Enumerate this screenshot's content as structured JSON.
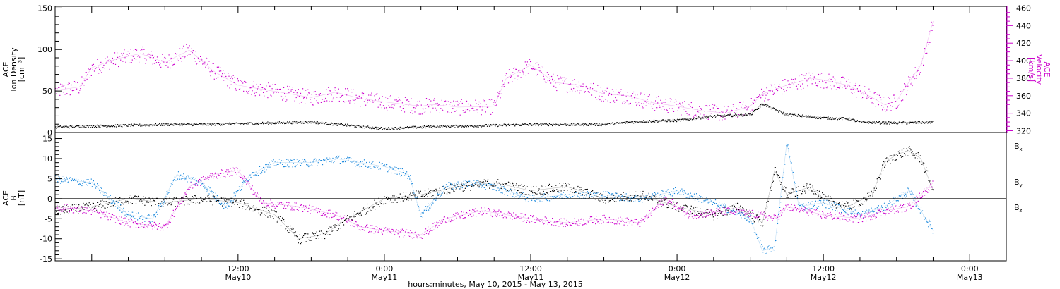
{
  "chart_data": {
    "type": "scatter",
    "xlabel": "hours:minutes, May 10, 2015 - May 13, 2015",
    "x_range_hours": [
      -3,
      75
    ],
    "x_ticks": [
      {
        "hour": 12,
        "time": "12:00",
        "date": "May10"
      },
      {
        "hour": 24,
        "time": "0:00",
        "date": "May11"
      },
      {
        "hour": 36,
        "time": "12:00",
        "date": "May11"
      },
      {
        "hour": 48,
        "time": "0:00",
        "date": "May12"
      },
      {
        "hour": 60,
        "time": "12:00",
        "date": "May12"
      },
      {
        "hour": 72,
        "time": "0:00",
        "date": "May13"
      }
    ],
    "panels": [
      {
        "name": "ion-density-velocity",
        "ylabel": [
          "ACE",
          "Ion Density",
          "[cm⁻³]"
        ],
        "ylim": [
          0,
          152
        ],
        "y_ticks": [
          0,
          50,
          100,
          150
        ],
        "ylabel_right": [
          "ACE",
          "Velocity",
          "[km/s]"
        ],
        "ylim_right": [
          318,
          462
        ],
        "y_ticks_right": [
          320,
          340,
          360,
          380,
          400,
          420,
          440,
          460
        ],
        "series": [
          {
            "axis": "left",
            "color": "#000000",
            "points": [
              [
                -3,
                7
              ],
              [
                0,
                8
              ],
              [
                3,
                9
              ],
              [
                6,
                10
              ],
              [
                9,
                10
              ],
              [
                12,
                11
              ],
              [
                15,
                12
              ],
              [
                18,
                13
              ],
              [
                21,
                9
              ],
              [
                24,
                5
              ],
              [
                27,
                7
              ],
              [
                30,
                8
              ],
              [
                33,
                9
              ],
              [
                36,
                10
              ],
              [
                39,
                10
              ],
              [
                42,
                10
              ],
              [
                45,
                14
              ],
              [
                48,
                15
              ],
              [
                51,
                20
              ],
              [
                54,
                22
              ],
              [
                55,
                35
              ],
              [
                56,
                28
              ],
              [
                57,
                22
              ],
              [
                60,
                18
              ],
              [
                62,
                17
              ],
              [
                63,
                13
              ],
              [
                65,
                12
              ],
              [
                67,
                12
              ],
              [
                69,
                13
              ]
            ]
          },
          {
            "axis": "right",
            "color": "#cc00cc",
            "points": [
              [
                -3,
                366
              ],
              [
                -1,
                370
              ],
              [
                0,
                392
              ],
              [
                2,
                402
              ],
              [
                4,
                408
              ],
              [
                6,
                398
              ],
              [
                8,
                412
              ],
              [
                9,
                400
              ],
              [
                10,
                388
              ],
              [
                12,
                372
              ],
              [
                15,
                365
              ],
              [
                18,
                358
              ],
              [
                20,
                364
              ],
              [
                22,
                357
              ],
              [
                24,
                353
              ],
              [
                27,
                348
              ],
              [
                28,
                350
              ],
              [
                30,
                347
              ],
              [
                33,
                348
              ],
              [
                34,
                380
              ],
              [
                36,
                395
              ],
              [
                38,
                375
              ],
              [
                40,
                372
              ],
              [
                42,
                362
              ],
              [
                44,
                360
              ],
              [
                46,
                352
              ],
              [
                48,
                348
              ],
              [
                50,
                343
              ],
              [
                52,
                340
              ],
              [
                54,
                348
              ],
              [
                55,
                362
              ],
              [
                57,
                372
              ],
              [
                59,
                380
              ],
              [
                60,
                378
              ],
              [
                62,
                372
              ],
              [
                63,
                365
              ],
              [
                64,
                358
              ],
              [
                65,
                350
              ],
              [
                66,
                354
              ],
              [
                67,
                375
              ],
              [
                68,
                395
              ],
              [
                69,
                445
              ]
            ]
          }
        ]
      },
      {
        "name": "magnetic-field",
        "ylabel": [
          "ACE",
          "B",
          "[nT]"
        ],
        "ylim": [
          -15.5,
          16.5
        ],
        "y_ticks": [
          -15,
          -10,
          -5,
          0,
          5,
          10,
          15
        ],
        "series": [
          {
            "name": "Bx",
            "color": "#000000",
            "points": [
              [
                -3,
                -3
              ],
              [
                0,
                -2
              ],
              [
                3,
                0
              ],
              [
                6,
                -1
              ],
              [
                9,
                0
              ],
              [
                12,
                -1
              ],
              [
                15,
                -4
              ],
              [
                17,
                -10
              ],
              [
                19,
                -9
              ],
              [
                21,
                -5
              ],
              [
                24,
                0
              ],
              [
                27,
                1
              ],
              [
                30,
                3
              ],
              [
                33,
                4
              ],
              [
                36,
                2
              ],
              [
                39,
                3
              ],
              [
                42,
                0
              ],
              [
                45,
                1
              ],
              [
                48,
                -2
              ],
              [
                51,
                -4
              ],
              [
                53,
                -2
              ],
              [
                55,
                -6
              ],
              [
                56,
                7
              ],
              [
                57,
                1
              ],
              [
                59,
                3
              ],
              [
                60,
                0
              ],
              [
                62,
                -2
              ],
              [
                64,
                1
              ],
              [
                65,
                9
              ],
              [
                66,
                11
              ],
              [
                67,
                12
              ],
              [
                68,
                10
              ],
              [
                69,
                2
              ]
            ]
          },
          {
            "name": "By",
            "color": "#1a88dd",
            "points": [
              [
                -3,
                5
              ],
              [
                0,
                4
              ],
              [
                3,
                -4
              ],
              [
                5,
                -5
              ],
              [
                7,
                6
              ],
              [
                9,
                4
              ],
              [
                11,
                -2
              ],
              [
                13,
                6
              ],
              [
                15,
                9
              ],
              [
                18,
                9
              ],
              [
                20,
                10
              ],
              [
                22,
                9
              ],
              [
                24,
                8
              ],
              [
                26,
                6
              ],
              [
                27,
                -4
              ],
              [
                29,
                3
              ],
              [
                31,
                4
              ],
              [
                33,
                3
              ],
              [
                36,
                0
              ],
              [
                39,
                1
              ],
              [
                42,
                1
              ],
              [
                45,
                0
              ],
              [
                48,
                2
              ],
              [
                51,
                -1
              ],
              [
                54,
                -5
              ],
              [
                55,
                -13
              ],
              [
                56,
                -12
              ],
              [
                57,
                14
              ],
              [
                58,
                -2
              ],
              [
                60,
                -1
              ],
              [
                63,
                -4
              ],
              [
                65,
                -2
              ],
              [
                67,
                2
              ],
              [
                69,
                -8
              ]
            ]
          },
          {
            "name": "Bz",
            "color": "#cc00cc",
            "points": [
              [
                -3,
                -2
              ],
              [
                0,
                -3
              ],
              [
                3,
                -6
              ],
              [
                6,
                -7
              ],
              [
                8,
                3
              ],
              [
                10,
                6
              ],
              [
                12,
                7
              ],
              [
                14,
                -1
              ],
              [
                17,
                -2
              ],
              [
                20,
                -4
              ],
              [
                22,
                -7
              ],
              [
                24,
                -8
              ],
              [
                27,
                -9
              ],
              [
                29,
                -5
              ],
              [
                32,
                -3
              ],
              [
                36,
                -5
              ],
              [
                39,
                -6
              ],
              [
                42,
                -5
              ],
              [
                45,
                -6
              ],
              [
                47,
                0
              ],
              [
                49,
                -4
              ],
              [
                52,
                -3
              ],
              [
                55,
                -4
              ],
              [
                56,
                -5
              ],
              [
                57,
                -2
              ],
              [
                60,
                -4
              ],
              [
                63,
                -5
              ],
              [
                65,
                -3
              ],
              [
                67,
                -2
              ],
              [
                69,
                4
              ]
            ]
          }
        ]
      }
    ]
  }
}
